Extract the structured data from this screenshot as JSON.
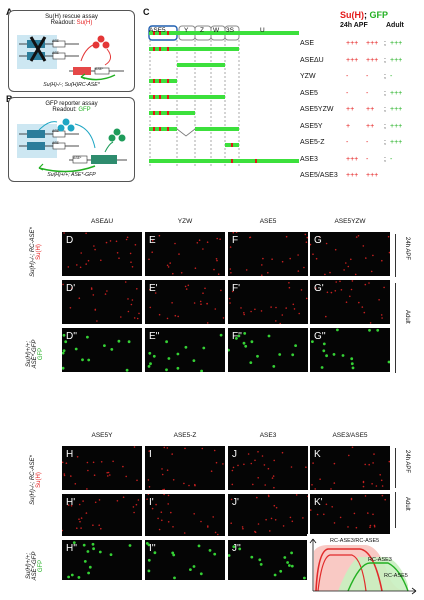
{
  "panelA": {
    "letter": "A",
    "title1": "Su(H) rescue assay",
    "title2_prefix": "Readout: ",
    "title2_hl": "Su(H)",
    "gene_left": "ASE",
    "gene_mid": "ASE",
    "gene_right": "ASE*",
    "caption": "Su(H)-/-; Su(H)RC-ASE*"
  },
  "panelB": {
    "letter": "B",
    "title1": "GFP reporter assay",
    "title2_prefix": "Readout: ",
    "title2_hl": "GFP",
    "gene_left": "ASE",
    "gene_mid": "ASE",
    "gene_right": "ASE*",
    "caption": "Su(H)+/+; ASE*-GFP"
  },
  "panelC": {
    "letter": "C",
    "segments": [
      "ASE5",
      "Y",
      "Z",
      "W",
      "3S",
      "U"
    ],
    "hdr_suh": "Su(H)",
    "hdr_sep": ";",
    "hdr_gfp": "GFP",
    "hdr_24": "24h APF",
    "hdr_adult": "Adult",
    "rows": [
      {
        "name": "ASE",
        "c1": "+++",
        "c2": "+++",
        "c3": "+++"
      },
      {
        "name": "ASEΔU",
        "c1": "+++",
        "c2": "+++",
        "c3": "+++"
      },
      {
        "name": "YZW",
        "c1": "-",
        "c2": "-",
        "c3": "-"
      },
      {
        "name": "ASE5",
        "c1": "-",
        "c2": "-",
        "c3": "+++"
      },
      {
        "name": "ASE5YZW",
        "c1": "++",
        "c2": "++",
        "c3": "+++"
      },
      {
        "name": "ASE5Y",
        "c1": "+",
        "c2": "++",
        "c3": "+++"
      },
      {
        "name": "ASE5-Z",
        "c1": "-",
        "c2": "-",
        "c3": "+++"
      },
      {
        "name": "ASE3",
        "c1": "+++",
        "c2": "-",
        "c3": "-"
      },
      {
        "name": "ASE5/ASE3",
        "c1": "+++",
        "c2": "+++",
        "c3": ""
      }
    ]
  },
  "panelD": {
    "cols": [
      "ASEΔU",
      "YZW",
      "ASE5",
      "ASE5YZW"
    ],
    "row1": [
      "D",
      "E",
      "F",
      "G"
    ],
    "row2": [
      "D'",
      "E'",
      "F'",
      "G'"
    ],
    "row3": [
      "D''",
      "E''",
      "F''",
      "G''"
    ]
  },
  "panelH": {
    "cols": [
      "ASE5Y",
      "ASE5-Z",
      "ASE3",
      "ASE3/ASE5"
    ],
    "row1": [
      "H",
      "I",
      "J",
      "K"
    ],
    "row2": [
      "H'",
      "I'",
      "J'",
      "K'"
    ],
    "row3": [
      "H''",
      "I''",
      "J''"
    ]
  },
  "side": {
    "suh_genotype": "Su(H)-/-; RC-ASE*",
    "suh_readout": "Su(H)",
    "gfp_genotype1": "Su(H)+/+;",
    "gfp_genotype2": "ASE*-GFP",
    "gfp_readout": "GFP",
    "t24": "24h APF",
    "adult": "Adult"
  },
  "panelL": {
    "letter": "L",
    "label1": "RC-ASE3/RC-ASE5",
    "label2": "RC-ASE3",
    "label3": "RC-ASE5"
  }
}
